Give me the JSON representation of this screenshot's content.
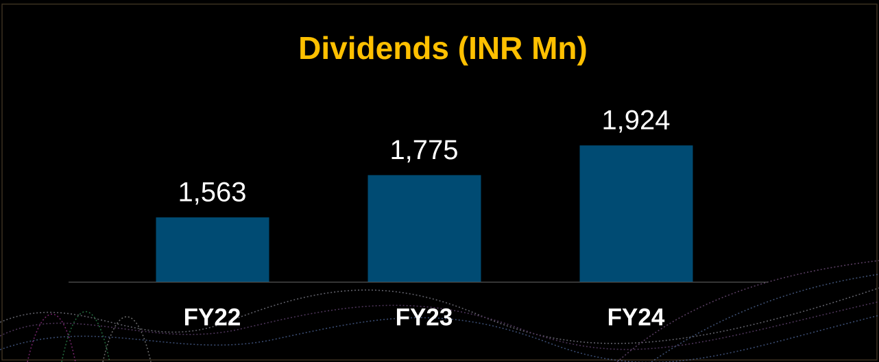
{
  "chart_data": {
    "type": "bar",
    "title": "Dividends (INR Mn)",
    "categories": [
      "FY22",
      "FY23",
      "FY24"
    ],
    "values": [
      1563,
      1775,
      1924
    ],
    "value_labels": [
      "1,563",
      "1,775",
      "1,924"
    ],
    "color": "#004b73",
    "ylim": [
      1240,
      2000
    ]
  }
}
